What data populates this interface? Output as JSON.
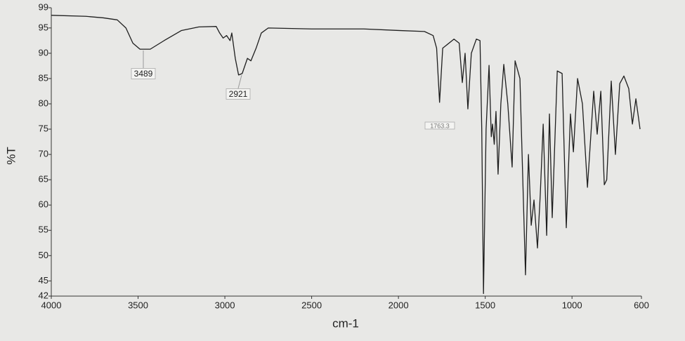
{
  "chart_data": {
    "type": "line",
    "xlabel": "cm-1",
    "ylabel": "%T",
    "color": "#1e1e1e",
    "xlim": [
      4000,
      600
    ],
    "ylim": [
      42,
      99
    ],
    "xticks": [
      4000,
      3500,
      3000,
      2500,
      2000,
      1500,
      1000,
      600
    ],
    "yticks": [
      42,
      45,
      50,
      55,
      60,
      65,
      70,
      75,
      80,
      85,
      90,
      95,
      99
    ],
    "grid": false,
    "annotations": [
      "3489",
      "2921",
      "1763.3"
    ],
    "x": [
      4000,
      3800,
      3700,
      3620,
      3570,
      3530,
      3489,
      3430,
      3350,
      3250,
      3150,
      3050,
      3030,
      3010,
      2990,
      2970,
      2960,
      2940,
      2921,
      2900,
      2870,
      2850,
      2820,
      2790,
      2750,
      2500,
      2200,
      2000,
      1850,
      1800,
      1780,
      1763,
      1745,
      1680,
      1650,
      1632,
      1616,
      1600,
      1580,
      1551,
      1530,
      1520,
      1510,
      1495,
      1478,
      1465,
      1458,
      1448,
      1438,
      1426,
      1410,
      1393,
      1370,
      1345,
      1328,
      1300,
      1268,
      1251,
      1235,
      1219,
      1199,
      1183,
      1166,
      1146,
      1130,
      1114,
      1085,
      1057,
      1033,
      1009,
      992,
      968,
      940,
      911,
      875,
      855,
      834,
      814,
      800,
      774,
      750,
      725,
      701,
      673,
      652,
      632,
      608
    ],
    "values": [
      97.5,
      97.3,
      97,
      96.6,
      95,
      92,
      90.8,
      90.8,
      92.5,
      94.5,
      95.2,
      95.3,
      94,
      93,
      93.5,
      92.5,
      94,
      89,
      85.7,
      86,
      89,
      88.5,
      91,
      94,
      95,
      94.8,
      94.8,
      94.5,
      94.3,
      93.5,
      91,
      80.3,
      91,
      92.8,
      92,
      84.2,
      90,
      79,
      90,
      92.8,
      92.5,
      75,
      42.5,
      75,
      87.6,
      73.5,
      76,
      72,
      78.5,
      66.1,
      80,
      87.8,
      80,
      67.5,
      88.5,
      85,
      46.2,
      70,
      56,
      61,
      51.5,
      62,
      76,
      54,
      78,
      57.5,
      86.5,
      86,
      55.5,
      78,
      70.5,
      85,
      80,
      63.5,
      82.5,
      74,
      82.5,
      64,
      65,
      84.5,
      70,
      84,
      85.5,
      83,
      76,
      81,
      75
    ]
  }
}
